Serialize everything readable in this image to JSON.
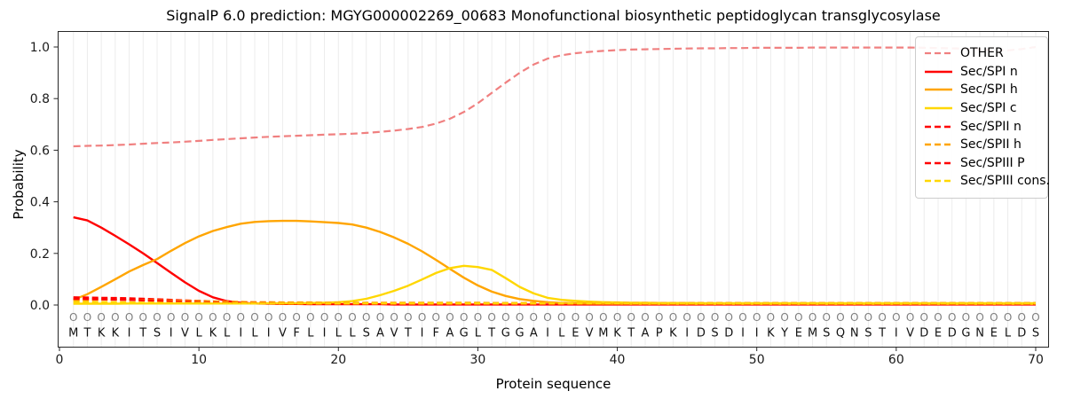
{
  "chart_data": {
    "type": "line",
    "title": "SignalP 6.0 prediction: MGYG000002269_00683 Monofunctional biosynthetic peptidoglycan transglycosylase",
    "xlabel": "Protein sequence",
    "ylabel": "Probability",
    "x_ticks": [
      0,
      10,
      20,
      30,
      40,
      50,
      60,
      70
    ],
    "y_ticks": [
      0.0,
      0.2,
      0.4,
      0.6,
      0.8,
      1.0
    ],
    "xlim": [
      -0.13,
      70.95
    ],
    "ylim": [
      -0.165,
      1.062
    ],
    "grid": "vertical-per-residue",
    "legend_position": "upper right",
    "x_start": 1,
    "sequence": "MTKKITSIVLKLILIVFLILLSAVTIFAGLTGGAILEVMKTAPKIDSDIIKYEMSQNSTIVDEDGNELDS",
    "predicted_labels": "OOOOOOOOOOOOOOOOOOOOOOOOOOOOOOOOOOOOOOOOOOOOOOOOOOOOOOOOOOOOOOOOOOOOOO",
    "series": [
      {
        "id": "other",
        "name": "OTHER",
        "color": "#f08080",
        "line_style": "dashed",
        "line_width": 2.2,
        "values": [
          0.615,
          0.617,
          0.618,
          0.62,
          0.622,
          0.625,
          0.628,
          0.63,
          0.633,
          0.636,
          0.64,
          0.643,
          0.646,
          0.649,
          0.652,
          0.654,
          0.656,
          0.658,
          0.66,
          0.662,
          0.664,
          0.667,
          0.671,
          0.676,
          0.682,
          0.69,
          0.703,
          0.722,
          0.748,
          0.782,
          0.822,
          0.862,
          0.9,
          0.932,
          0.955,
          0.968,
          0.976,
          0.981,
          0.985,
          0.988,
          0.99,
          0.991,
          0.992,
          0.993,
          0.994,
          0.995,
          0.995,
          0.996,
          0.996,
          0.997,
          0.997,
          0.997,
          0.997,
          0.998,
          0.998,
          0.998,
          0.998,
          0.998,
          0.998,
          0.998,
          0.998,
          0.997,
          0.996,
          0.995,
          0.993,
          0.99,
          0.988,
          0.987,
          0.992,
          1.0
        ]
      },
      {
        "id": "spi-n",
        "name": "Sec/SPI n",
        "color": "#ff0000",
        "line_style": "solid",
        "line_width": 2.4,
        "values": [
          0.34,
          0.328,
          0.3,
          0.268,
          0.235,
          0.2,
          0.163,
          0.125,
          0.088,
          0.055,
          0.03,
          0.015,
          0.009,
          0.006,
          0.005,
          0.004,
          0.004,
          0.003,
          0.003,
          0.003,
          0.003,
          0.003,
          0.003,
          0.002,
          0.002,
          0.002,
          0.002,
          0.002,
          0.002,
          0.002,
          0.002,
          0.002,
          0.002,
          0.002,
          0.002,
          0.002,
          0.002,
          0.002,
          0.002,
          0.002,
          0.002,
          0.002,
          0.002,
          0.002,
          0.002,
          0.002,
          0.002,
          0.002,
          0.002,
          0.002,
          0.002,
          0.002,
          0.002,
          0.002,
          0.002,
          0.002,
          0.002,
          0.002,
          0.002,
          0.002,
          0.002,
          0.002,
          0.002,
          0.002,
          0.002,
          0.002,
          0.002,
          0.002,
          0.002,
          0.002
        ]
      },
      {
        "id": "spi-h",
        "name": "Sec/SPI h",
        "color": "#ffa500",
        "line_style": "solid",
        "line_width": 2.4,
        "values": [
          0.02,
          0.042,
          0.07,
          0.1,
          0.13,
          0.155,
          0.178,
          0.21,
          0.24,
          0.266,
          0.287,
          0.302,
          0.315,
          0.322,
          0.325,
          0.326,
          0.326,
          0.324,
          0.321,
          0.318,
          0.312,
          0.3,
          0.283,
          0.262,
          0.237,
          0.208,
          0.175,
          0.14,
          0.106,
          0.076,
          0.052,
          0.035,
          0.023,
          0.016,
          0.011,
          0.008,
          0.007,
          0.006,
          0.005,
          0.005,
          0.004,
          0.004,
          0.004,
          0.004,
          0.004,
          0.004,
          0.004,
          0.004,
          0.004,
          0.004,
          0.004,
          0.004,
          0.004,
          0.004,
          0.004,
          0.004,
          0.004,
          0.004,
          0.004,
          0.004,
          0.004,
          0.004,
          0.004,
          0.004,
          0.004,
          0.004,
          0.004,
          0.004,
          0.004,
          0.004
        ]
      },
      {
        "id": "spi-c",
        "name": "Sec/SPI c",
        "color": "#ffd700",
        "line_style": "solid",
        "line_width": 2.4,
        "values": [
          0.005,
          0.005,
          0.005,
          0.005,
          0.006,
          0.006,
          0.006,
          0.006,
          0.006,
          0.006,
          0.006,
          0.006,
          0.006,
          0.006,
          0.007,
          0.007,
          0.007,
          0.008,
          0.009,
          0.011,
          0.015,
          0.024,
          0.038,
          0.055,
          0.075,
          0.099,
          0.124,
          0.143,
          0.152,
          0.147,
          0.136,
          0.104,
          0.07,
          0.045,
          0.028,
          0.02,
          0.016,
          0.013,
          0.011,
          0.01,
          0.009,
          0.009,
          0.008,
          0.008,
          0.008,
          0.007,
          0.007,
          0.007,
          0.007,
          0.007,
          0.007,
          0.007,
          0.007,
          0.007,
          0.007,
          0.007,
          0.007,
          0.007,
          0.007,
          0.007,
          0.007,
          0.007,
          0.007,
          0.007,
          0.007,
          0.007,
          0.007,
          0.007,
          0.007,
          0.007
        ]
      },
      {
        "id": "spii-n",
        "name": "Sec/SPII n",
        "color": "#ff0000",
        "line_style": "dashed",
        "line_width": 2.4,
        "values": [
          0.03,
          0.029,
          0.028,
          0.027,
          0.026,
          0.024,
          0.022,
          0.02,
          0.018,
          0.016,
          0.014,
          0.012,
          0.011,
          0.01,
          0.009,
          0.008,
          0.008,
          0.007,
          0.007,
          0.006,
          0.005,
          0.005,
          0.005,
          0.005,
          0.005,
          0.005,
          0.005,
          0.005,
          0.005,
          0.005,
          0.004,
          0.004,
          0.004,
          0.004,
          0.004,
          0.004,
          0.004,
          0.004,
          0.004,
          0.004,
          0.004,
          0.004,
          0.004,
          0.004,
          0.004,
          0.004,
          0.004,
          0.004,
          0.004,
          0.004,
          0.004,
          0.004,
          0.004,
          0.004,
          0.004,
          0.004,
          0.004,
          0.004,
          0.004,
          0.004,
          0.004,
          0.004,
          0.004,
          0.004,
          0.004,
          0.004,
          0.004,
          0.004,
          0.004,
          0.004
        ]
      },
      {
        "id": "spii-h",
        "name": "Sec/SPII h",
        "color": "#ffa500",
        "line_style": "dashed",
        "line_width": 2.4,
        "values": [
          0.018,
          0.019,
          0.02,
          0.02,
          0.02,
          0.019,
          0.018,
          0.017,
          0.016,
          0.015,
          0.014,
          0.013,
          0.012,
          0.011,
          0.011,
          0.01,
          0.01,
          0.01,
          0.009,
          0.009,
          0.009,
          0.009,
          0.009,
          0.009,
          0.009,
          0.009,
          0.009,
          0.009,
          0.009,
          0.009,
          0.008,
          0.008,
          0.008,
          0.008,
          0.008,
          0.008,
          0.008,
          0.008,
          0.008,
          0.008,
          0.008,
          0.008,
          0.008,
          0.008,
          0.008,
          0.008,
          0.008,
          0.008,
          0.008,
          0.008,
          0.008,
          0.008,
          0.008,
          0.008,
          0.008,
          0.008,
          0.008,
          0.008,
          0.008,
          0.008,
          0.008,
          0.008,
          0.008,
          0.008,
          0.008,
          0.008,
          0.008,
          0.008,
          0.008,
          0.008
        ]
      },
      {
        "id": "spiii-p",
        "name": "Sec/SPIII P",
        "color": "#ff0000",
        "line_style": "dashed",
        "line_width": 2.4,
        "values": [
          0.024,
          0.023,
          0.022,
          0.021,
          0.02,
          0.018,
          0.016,
          0.014,
          0.013,
          0.011,
          0.01,
          0.009,
          0.008,
          0.007,
          0.007,
          0.006,
          0.006,
          0.005,
          0.005,
          0.005,
          0.004,
          0.004,
          0.004,
          0.004,
          0.004,
          0.004,
          0.004,
          0.004,
          0.004,
          0.004,
          0.003,
          0.003,
          0.003,
          0.003,
          0.003,
          0.003,
          0.003,
          0.003,
          0.003,
          0.003,
          0.003,
          0.003,
          0.003,
          0.003,
          0.003,
          0.003,
          0.003,
          0.003,
          0.003,
          0.003,
          0.003,
          0.003,
          0.003,
          0.003,
          0.003,
          0.003,
          0.003,
          0.003,
          0.003,
          0.003,
          0.003,
          0.003,
          0.003,
          0.003,
          0.003,
          0.003,
          0.003,
          0.003,
          0.003,
          0.003
        ]
      },
      {
        "id": "spiii-cons",
        "name": "Sec/SPIII cons.",
        "color": "#ffd700",
        "line_style": "dashed",
        "line_width": 2.4,
        "values": [
          0.011,
          0.011,
          0.01,
          0.01,
          0.01,
          0.009,
          0.009,
          0.008,
          0.008,
          0.008,
          0.007,
          0.007,
          0.007,
          0.006,
          0.006,
          0.006,
          0.006,
          0.006,
          0.006,
          0.006,
          0.006,
          0.006,
          0.006,
          0.006,
          0.006,
          0.006,
          0.006,
          0.006,
          0.006,
          0.006,
          0.006,
          0.006,
          0.006,
          0.006,
          0.006,
          0.006,
          0.006,
          0.006,
          0.006,
          0.006,
          0.006,
          0.006,
          0.006,
          0.006,
          0.006,
          0.006,
          0.006,
          0.006,
          0.006,
          0.006,
          0.006,
          0.006,
          0.006,
          0.006,
          0.006,
          0.006,
          0.006,
          0.006,
          0.006,
          0.006,
          0.006,
          0.006,
          0.006,
          0.006,
          0.006,
          0.006,
          0.006,
          0.006,
          0.006,
          0.006
        ]
      }
    ],
    "colors": {
      "grid": "#ececec",
      "spine": "#262626",
      "tick_label": "#1a1a1a",
      "predicted_label_text": "#7f7f7f",
      "sequence_text": "#111111"
    }
  }
}
